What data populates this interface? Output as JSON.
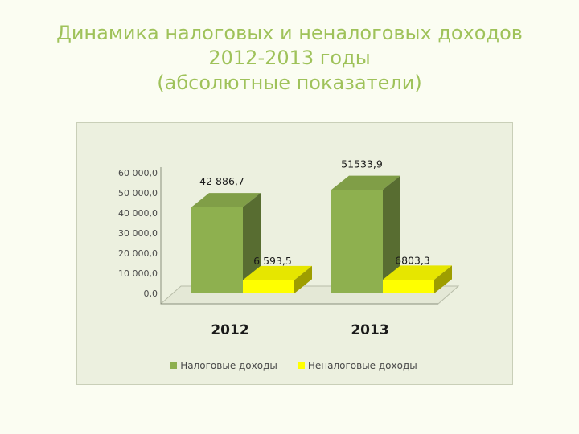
{
  "title": {
    "line1": "Динамика налоговых и неналоговых доходов",
    "line2": "2012-2013 годы",
    "line3": "(абсолютные показатели)"
  },
  "chart_data": {
    "type": "bar",
    "three_d": true,
    "categories": [
      "2012",
      "2013"
    ],
    "series": [
      {
        "name": "Налоговые доходы",
        "values": [
          42886.7,
          51533.9
        ],
        "labels": [
          "42 886,7",
          "51533,9"
        ],
        "color": "#8eb04f"
      },
      {
        "name": "Неналоговые доходы",
        "values": [
          6593.5,
          6803.3
        ],
        "labels": [
          "6 593,5",
          "6803,3"
        ],
        "color": "#ffff00"
      }
    ],
    "ylim": [
      0,
      60000
    ],
    "yticks": [
      0,
      10000,
      20000,
      30000,
      40000,
      50000,
      60000
    ],
    "ytick_labels": [
      "0,0",
      "10 000,0",
      "20 000,0",
      "30 000,0",
      "40 000,0",
      "50 000,0",
      "60 000,0"
    ],
    "grid": false,
    "legend_position": "bottom",
    "xlabel": "",
    "ylabel": ""
  }
}
